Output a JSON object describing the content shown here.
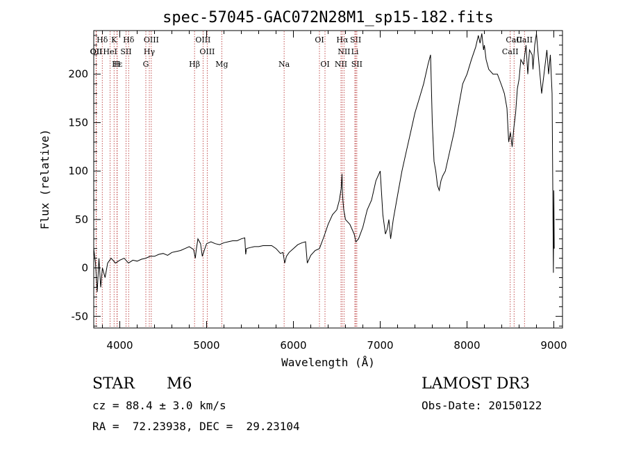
{
  "chart_data": {
    "type": "line",
    "title": "spec-57045-GAC072N28M1_sp15-182.fits",
    "xlabel": "Wavelength (Å)",
    "ylabel": "Flux (relative)",
    "xlim": [
      3700,
      9100
    ],
    "ylim": [
      -62,
      245
    ],
    "xticks": [
      4000,
      5000,
      6000,
      7000,
      8000,
      9000
    ],
    "yticks": [
      -50,
      0,
      50,
      100,
      150,
      200
    ],
    "grid": false,
    "series": [
      {
        "name": "flux",
        "x": [
          3700,
          3720,
          3740,
          3760,
          3780,
          3800,
          3830,
          3860,
          3900,
          3950,
          4000,
          4050,
          4100,
          4150,
          4200,
          4250,
          4300,
          4350,
          4400,
          4450,
          4500,
          4550,
          4600,
          4650,
          4700,
          4750,
          4800,
          4850,
          4870,
          4880,
          4900,
          4930,
          4950,
          4980,
          5000,
          5050,
          5100,
          5150,
          5200,
          5250,
          5300,
          5350,
          5400,
          5440,
          5450,
          5460,
          5500,
          5550,
          5600,
          5650,
          5700,
          5750,
          5800,
          5850,
          5880,
          5900,
          5920,
          5950,
          6000,
          6050,
          6100,
          6140,
          6160,
          6200,
          6250,
          6300,
          6350,
          6400,
          6450,
          6500,
          6530,
          6550,
          6560,
          6565,
          6570,
          6580,
          6600,
          6650,
          6700,
          6720,
          6750,
          6800,
          6850,
          6900,
          6950,
          7000,
          7030,
          7060,
          7080,
          7100,
          7120,
          7150,
          7200,
          7250,
          7300,
          7350,
          7400,
          7450,
          7500,
          7550,
          7580,
          7600,
          7620,
          7640,
          7660,
          7680,
          7700,
          7720,
          7750,
          7800,
          7850,
          7900,
          7950,
          8000,
          8050,
          8100,
          8130,
          8150,
          8170,
          8190,
          8200,
          8220,
          8250,
          8300,
          8350,
          8400,
          8430,
          8460,
          8480,
          8500,
          8520,
          8540,
          8560,
          8580,
          8600,
          8620,
          8650,
          8680,
          8700,
          8720,
          8750,
          8760,
          8780,
          8800,
          8820,
          8840,
          8860,
          8880,
          8900,
          8920,
          8940,
          8960,
          8980,
          8995,
          9000,
          9005
        ],
        "y": [
          20,
          5,
          -25,
          10,
          -20,
          0,
          -10,
          5,
          10,
          5,
          8,
          10,
          5,
          8,
          7,
          9,
          10,
          12,
          12,
          14,
          15,
          13,
          16,
          17,
          18,
          20,
          22,
          19,
          10,
          18,
          30,
          25,
          12,
          20,
          25,
          27,
          25,
          24,
          26,
          27,
          28,
          28,
          30,
          31,
          14,
          20,
          21,
          22,
          22,
          23,
          23,
          23,
          20,
          15,
          16,
          5,
          12,
          16,
          20,
          24,
          26,
          27,
          5,
          13,
          18,
          20,
          32,
          45,
          55,
          60,
          70,
          82,
          97,
          78,
          70,
          60,
          50,
          45,
          35,
          27,
          30,
          42,
          60,
          70,
          90,
          100,
          55,
          35,
          40,
          50,
          30,
          50,
          75,
          100,
          120,
          140,
          160,
          175,
          190,
          210,
          220,
          150,
          110,
          100,
          85,
          80,
          90,
          95,
          100,
          120,
          140,
          165,
          190,
          200,
          215,
          228,
          240,
          232,
          242,
          225,
          230,
          215,
          205,
          200,
          200,
          188,
          180,
          165,
          130,
          140,
          125,
          145,
          160,
          185,
          195,
          215,
          210,
          230,
          200,
          225,
          220,
          205,
          230,
          242,
          220,
          200,
          180,
          195,
          210,
          225,
          200,
          220,
          180,
          -5,
          80,
          20
        ]
      }
    ],
    "line_markers": [
      {
        "label": "Hδ",
        "wl": 3798
      },
      {
        "label": "K",
        "wl": 3934
      },
      {
        "label": "Hδ",
        "wl": 4102
      },
      {
        "label": "OIII",
        "wl": 4363
      },
      {
        "label": "OIII",
        "wl": 4959
      },
      {
        "label": "OI",
        "wl": 6300
      },
      {
        "label": "Hα",
        "wl": 6563
      },
      {
        "label": "SII",
        "wl": 6717
      },
      {
        "label": "CaII",
        "wl": 8542
      },
      {
        "label": "OII",
        "wl": 3727
      },
      {
        "label": "HeI",
        "wl": 3889
      },
      {
        "label": "SII",
        "wl": 4072
      },
      {
        "label": "Hγ",
        "wl": 4340
      },
      {
        "label": "OIII",
        "wl": 5007
      },
      {
        "label": "NII",
        "wl": 6583
      },
      {
        "label": "Li",
        "wl": 6708
      },
      {
        "label": "CaII",
        "wl": 8498
      },
      {
        "label": "OII",
        "wl": 3730
      },
      {
        "label": "Hε",
        "wl": 3970
      },
      {
        "label": "H",
        "wl": 3968
      },
      {
        "label": "G",
        "wl": 4300
      },
      {
        "label": "Hβ",
        "wl": 4861
      },
      {
        "label": "Mg",
        "wl": 5175
      },
      {
        "label": "Na",
        "wl": 5893
      },
      {
        "label": "OI",
        "wl": 6364
      },
      {
        "label": "NII",
        "wl": 6548
      },
      {
        "label": "SII",
        "wl": 6731
      },
      {
        "label": "CaII",
        "wl": 8662
      }
    ]
  },
  "info": {
    "object_class": "STAR",
    "subclass": "M6",
    "survey": "LAMOST DR3",
    "redshift": "cz = 88.4 ± 3.0 km/s",
    "obs_date": "Obs-Date: 20150122",
    "coords": "RA =  72.23938, DEC =  29.23104"
  }
}
